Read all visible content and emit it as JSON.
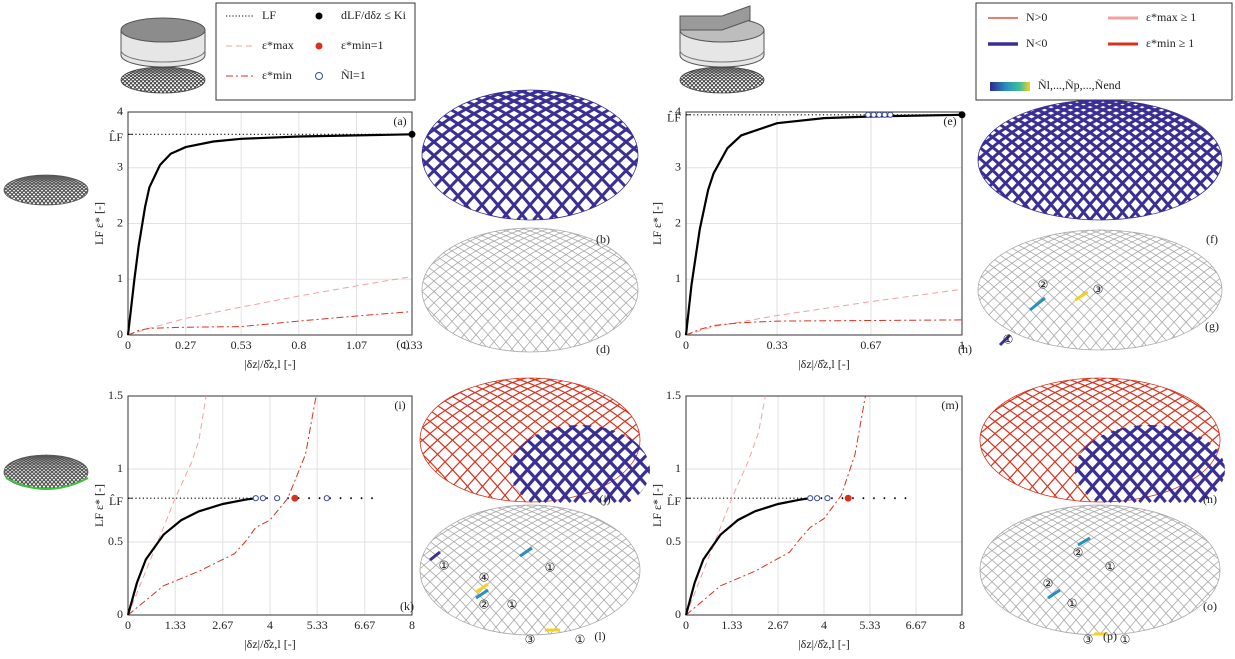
{
  "chart_data": [
    {
      "type": "line",
      "panel": "(a)",
      "xlabel": "|δz|/δ̂z,l [-]",
      "ylabel": "LF ε* [-]",
      "xlim": [
        0,
        1.33
      ],
      "xticks": [
        0,
        0.27,
        0.53,
        0.8,
        1.07,
        1.33
      ],
      "ylim": [
        0,
        4
      ],
      "yticks": [
        0,
        1,
        2,
        3,
        {
          "value": 3.6,
          "label": "L̂F"
        },
        4
      ],
      "grid": true,
      "series": [
        {
          "style": "dotted",
          "color": "#000000",
          "x": [
            0,
            1.33
          ],
          "values": [
            3.6,
            3.6
          ]
        },
        {
          "style": "dashed",
          "color": "#f4a0a0",
          "x": [
            0,
            0.1,
            0.27,
            0.53,
            0.8,
            1.07,
            1.33
          ],
          "values": [
            0,
            0.12,
            0.3,
            0.5,
            0.7,
            0.88,
            1.05
          ]
        },
        {
          "style": "dashdot",
          "color": "#d8321e",
          "x": [
            0,
            0.05,
            0.1,
            0.27,
            0.53,
            0.8,
            1.07,
            1.33
          ],
          "values": [
            0,
            0.08,
            0.12,
            0.14,
            0.15,
            0.25,
            0.34,
            0.42
          ]
        },
        {
          "style": "solid",
          "color": "#000000",
          "x": [
            0,
            0.03,
            0.05,
            0.08,
            0.1,
            0.15,
            0.2,
            0.27,
            0.4,
            0.53,
            0.8,
            1.07,
            1.33
          ],
          "values": [
            0,
            1.0,
            1.6,
            2.3,
            2.65,
            3.05,
            3.25,
            3.37,
            3.47,
            3.52,
            3.56,
            3.58,
            3.6
          ]
        },
        {
          "style": "dot",
          "color": "#000000",
          "x": [
            1.33
          ],
          "values": [
            3.6
          ]
        }
      ]
    },
    {
      "type": "line",
      "panel": "(e)",
      "xlabel": "|δz|/δ̂z,l [-]",
      "ylabel": "LF ε* [-]",
      "xlim": [
        0,
        1
      ],
      "xticks": [
        0,
        0.33,
        0.67,
        1
      ],
      "ylim": [
        0,
        4
      ],
      "yticks": [
        0,
        1,
        2,
        3,
        {
          "value": 3.95,
          "label": "L̂F"
        },
        4
      ],
      "grid": true,
      "series": [
        {
          "style": "dotted",
          "color": "#000000",
          "x": [
            0,
            1
          ],
          "values": [
            3.95,
            3.95
          ]
        },
        {
          "style": "dashed",
          "color": "#f4a0a0",
          "x": [
            0,
            0.1,
            0.33,
            0.67,
            1
          ],
          "values": [
            0,
            0.15,
            0.35,
            0.6,
            0.82
          ]
        },
        {
          "style": "dashdot",
          "color": "#d8321e",
          "x": [
            0,
            0.05,
            0.1,
            0.2,
            0.33,
            0.67,
            1
          ],
          "values": [
            0,
            0.1,
            0.17,
            0.22,
            0.25,
            0.26,
            0.27
          ]
        },
        {
          "style": "solid",
          "color": "#000000",
          "x": [
            0,
            0.02,
            0.05,
            0.08,
            0.1,
            0.15,
            0.2,
            0.33,
            0.5,
            0.67,
            1
          ],
          "values": [
            0,
            0.9,
            1.9,
            2.6,
            2.9,
            3.35,
            3.58,
            3.8,
            3.89,
            3.92,
            3.95
          ]
        },
        {
          "style": "circle",
          "color": "#3b4ba0",
          "x": [
            0.66,
            0.68,
            0.7,
            0.72,
            0.74
          ],
          "values": [
            3.95,
            3.95,
            3.95,
            3.95,
            3.95
          ]
        },
        {
          "style": "dot",
          "color": "#000000",
          "x": [
            1
          ],
          "values": [
            3.95
          ]
        }
      ]
    },
    {
      "type": "line",
      "panel": "(i)",
      "xlabel": "|δz|/δ̂z,l [-]",
      "ylabel": "LF ε* [-]",
      "xlim": [
        0,
        8
      ],
      "xticks": [
        0,
        1.33,
        2.67,
        4,
        5.33,
        6.67,
        8
      ],
      "ylim": [
        0,
        1.5
      ],
      "yticks": [
        0,
        0.5,
        {
          "value": 0.8,
          "label": "L̂F"
        },
        1,
        1.5
      ],
      "grid": true,
      "series": [
        {
          "style": "dotted",
          "color": "#000000",
          "x": [
            0,
            3.6
          ],
          "values": [
            0.8,
            0.8
          ]
        },
        {
          "style": "sparse",
          "color": "#000000",
          "x": [
            3.6,
            7
          ],
          "values": [
            0.8,
            0.8
          ]
        },
        {
          "style": "dashed",
          "color": "#f4a0a0",
          "x": [
            0,
            0.5,
            1,
            1.33,
            1.8,
            2,
            2.2
          ],
          "values": [
            0,
            0.3,
            0.6,
            0.8,
            1.05,
            1.2,
            1.5
          ]
        },
        {
          "style": "dashdot",
          "color": "#d8321e",
          "x": [
            0,
            0.5,
            1,
            2,
            3,
            3.3,
            3.6,
            4,
            4.5,
            5,
            5.3
          ],
          "values": [
            0,
            0.1,
            0.2,
            0.3,
            0.42,
            0.5,
            0.6,
            0.65,
            0.8,
            1.1,
            1.5
          ]
        },
        {
          "style": "solid",
          "color": "#000000",
          "x": [
            0,
            0.25,
            0.5,
            1,
            1.5,
            2,
            2.67,
            3.3,
            3.6
          ],
          "values": [
            0,
            0.22,
            0.38,
            0.55,
            0.65,
            0.71,
            0.76,
            0.79,
            0.8
          ]
        },
        {
          "style": "circle",
          "color": "#3b4ba0",
          "x": [
            3.6,
            3.8,
            4.2,
            5.6
          ],
          "values": [
            0.8,
            0.8,
            0.8,
            0.8
          ]
        },
        {
          "style": "dot",
          "color": "#d8321e",
          "x": [
            4.7
          ],
          "values": [
            0.8
          ]
        }
      ]
    },
    {
      "type": "line",
      "panel": "(m)",
      "xlabel": "|δz|/δ̂z,l [-]",
      "ylabel": "LF ε* [-]",
      "xlim": [
        0,
        8
      ],
      "xticks": [
        0,
        1.33,
        2.67,
        4,
        5.33,
        6.67,
        8
      ],
      "ylim": [
        0,
        1.5
      ],
      "yticks": [
        0,
        0.5,
        {
          "value": 0.8,
          "label": "L̂F"
        },
        1,
        1.5
      ],
      "grid": true,
      "series": [
        {
          "style": "dotted",
          "color": "#000000",
          "x": [
            0,
            3.6
          ],
          "values": [
            0.8,
            0.8
          ]
        },
        {
          "style": "sparse",
          "color": "#000000",
          "x": [
            3.6,
            6.6
          ],
          "values": [
            0.8,
            0.8
          ]
        },
        {
          "style": "dashed",
          "color": "#f4a0a0",
          "x": [
            0,
            0.5,
            1,
            1.33,
            1.8,
            2.1,
            2.3
          ],
          "values": [
            0,
            0.3,
            0.6,
            0.8,
            1.05,
            1.25,
            1.5
          ]
        },
        {
          "style": "dashdot",
          "color": "#d8321e",
          "x": [
            0,
            0.5,
            1,
            2,
            3,
            3.3,
            3.6,
            4,
            4.5,
            4.9,
            5.2
          ],
          "values": [
            0,
            0.1,
            0.2,
            0.3,
            0.43,
            0.52,
            0.6,
            0.66,
            0.82,
            1.1,
            1.5
          ]
        },
        {
          "style": "solid",
          "color": "#000000",
          "x": [
            0,
            0.25,
            0.5,
            1,
            1.5,
            2,
            2.67,
            3.3,
            3.6
          ],
          "values": [
            0,
            0.22,
            0.38,
            0.55,
            0.65,
            0.71,
            0.76,
            0.79,
            0.8
          ]
        },
        {
          "style": "circle",
          "color": "#3b4ba0",
          "x": [
            3.6,
            3.8,
            4.1
          ],
          "values": [
            0.8,
            0.8,
            0.8
          ]
        },
        {
          "style": "dot",
          "color": "#d8321e",
          "x": [
            4.7
          ],
          "values": [
            0.8
          ]
        }
      ]
    }
  ],
  "legends": [
    {
      "items": [
        "LF",
        "dLF/dδz ≤ Ki",
        "ε*max",
        "ε*min=1",
        "ε*min",
        "Ñl=1"
      ]
    },
    {
      "items": [
        "N>0",
        "ε*max ≥ 1",
        "N<0",
        "ε*min ≥ 1",
        "Ñl,...,Ñp,...,Ñend"
      ]
    }
  ],
  "panel_labels": [
    "(b)",
    "(c)",
    "(d)",
    "(f)",
    "(g)",
    "(h)",
    "(j)",
    "(k)",
    "(l)",
    "(n)",
    "(o)",
    "(p)"
  ],
  "element_labels": [
    "①",
    "②",
    "③",
    "①",
    "①",
    "④",
    "②",
    "①",
    "③",
    "①",
    "②",
    "①",
    "②",
    "①",
    "③",
    "①"
  ]
}
